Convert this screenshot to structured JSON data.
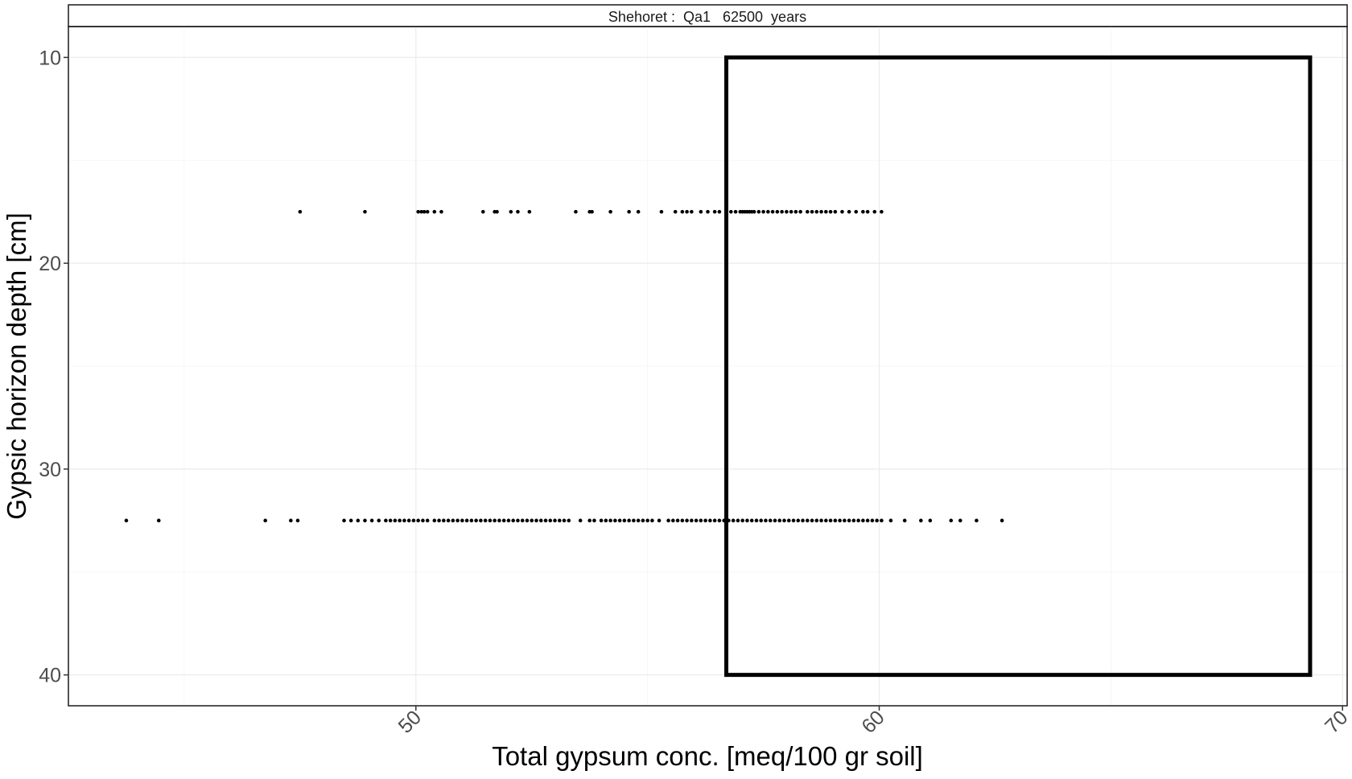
{
  "chart_data": {
    "type": "scatter",
    "facet_label": "Shehoret :  Qa1   62500  years",
    "xlabel": "Total gypsum conc. [meq/100 gr soil]",
    "ylabel": "Gypsic horizon depth [cm]",
    "xlim": [
      42.5,
      70.1
    ],
    "ylim": [
      8.5,
      41.5
    ],
    "y_reversed": true,
    "x_ticks": [
      50,
      60,
      70
    ],
    "y_ticks": [
      10,
      20,
      30,
      40
    ],
    "x_minor_ticks": [
      45,
      55,
      65
    ],
    "y_minor_ticks": [
      15,
      25,
      35
    ],
    "grid": true,
    "x_tick_rotation": 45,
    "series": [
      {
        "depth": 17.5,
        "x": [
          47.5,
          48.9,
          50.05,
          50.12,
          50.18,
          50.25,
          50.4,
          50.55,
          51.45,
          51.7,
          51.75,
          52.05,
          52.2,
          52.45,
          53.45,
          53.75,
          53.8,
          54.2,
          54.6,
          54.8,
          55.3,
          55.6,
          55.75,
          55.85,
          55.95,
          56.15,
          56.3,
          56.45,
          56.55,
          56.7,
          56.8,
          56.9,
          57.0,
          57.05,
          57.1,
          57.15,
          57.2,
          57.25,
          57.3,
          57.4,
          57.5,
          57.6,
          57.7,
          57.8,
          57.9,
          58.0,
          58.1,
          58.2,
          58.3,
          58.45,
          58.55,
          58.65,
          58.75,
          58.85,
          58.95,
          59.05,
          59.2,
          59.35,
          59.5,
          59.65,
          59.75,
          59.9,
          60.05
        ]
      },
      {
        "depth": 32.5,
        "x": [
          43.75,
          44.45,
          46.75,
          47.3,
          47.45,
          48.45,
          48.6,
          48.75,
          48.9,
          49.05,
          49.2,
          49.35,
          49.45,
          49.55,
          49.65,
          49.75,
          49.85,
          49.95,
          50.05,
          50.15,
          50.25,
          50.4,
          50.5,
          50.6,
          50.7,
          50.8,
          50.9,
          51.0,
          51.1,
          51.2,
          51.3,
          51.4,
          51.5,
          51.6,
          51.7,
          51.8,
          51.9,
          52.0,
          52.1,
          52.2,
          52.3,
          52.4,
          52.5,
          52.6,
          52.7,
          52.8,
          52.9,
          53.0,
          53.1,
          53.2,
          53.3,
          53.55,
          53.75,
          53.85,
          54.0,
          54.1,
          54.2,
          54.3,
          54.4,
          54.5,
          54.6,
          54.7,
          54.8,
          54.9,
          55.0,
          55.1,
          55.25,
          55.45,
          55.55,
          55.65,
          55.75,
          55.85,
          55.95,
          56.05,
          56.15,
          56.25,
          56.35,
          56.45,
          56.55,
          56.65,
          56.75,
          56.85,
          56.95,
          57.05,
          57.15,
          57.25,
          57.35,
          57.45,
          57.55,
          57.65,
          57.75,
          57.85,
          57.95,
          58.05,
          58.15,
          58.25,
          58.35,
          58.45,
          58.55,
          58.65,
          58.75,
          58.85,
          58.95,
          59.05,
          59.15,
          59.25,
          59.35,
          59.45,
          59.55,
          59.65,
          59.75,
          59.85,
          59.95,
          60.05,
          60.25,
          60.55,
          60.9,
          61.1,
          61.55,
          61.75,
          62.1,
          62.65
        ]
      }
    ],
    "rectangle": {
      "xmin": 56.7,
      "xmax": 69.3,
      "ymin": 10,
      "ymax": 40
    }
  }
}
